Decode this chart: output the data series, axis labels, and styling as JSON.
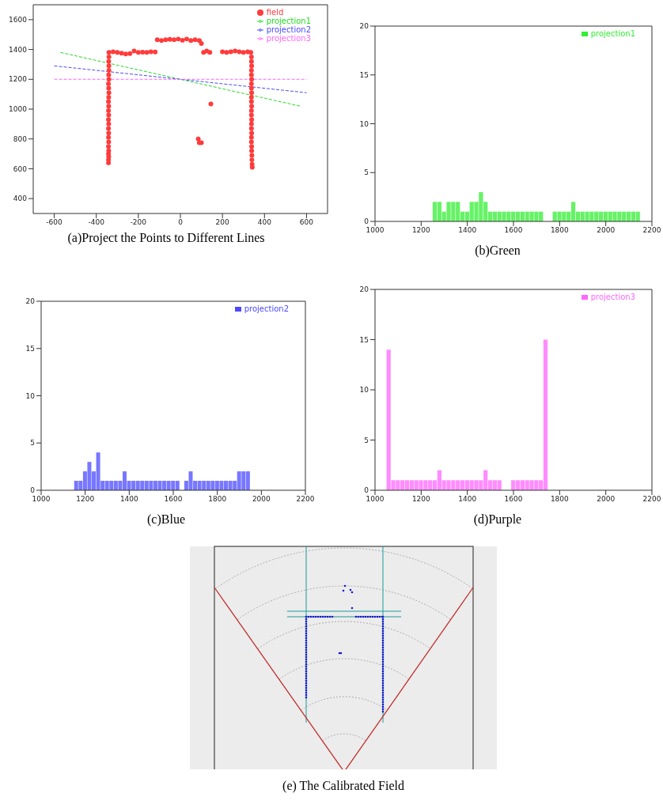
{
  "chart_data": [
    {
      "type": "line",
      "title": "(a)Project the Points to Different Lines",
      "xlim": [
        -700,
        700
      ],
      "ylim": [
        300,
        1700
      ],
      "xticks": [
        -600,
        -400,
        -200,
        0,
        200,
        400,
        600
      ],
      "yticks": [
        400,
        600,
        800,
        1000,
        1200,
        1400,
        1600
      ],
      "legend": "top right",
      "series": [
        {
          "name": "field",
          "type": "scatter",
          "marker": "circle",
          "color": "#ff3b3b",
          "x": [
            -342,
            -342,
            -341,
            -342,
            -341,
            -342,
            -341,
            -342,
            -341,
            -342,
            -341,
            -342,
            -341,
            -342,
            -341,
            -342,
            -341,
            -340,
            -341,
            -342,
            -340,
            -341,
            -340,
            -340,
            -341,
            -340,
            -340,
            -320,
            -300,
            -280,
            -260,
            -240,
            -220,
            -200,
            -180,
            -160,
            -140,
            -120,
            -110,
            -90,
            -70,
            -50,
            -30,
            -10,
            10,
            30,
            50,
            70,
            90,
            100,
            110,
            125,
            140,
            145,
            85,
            90,
            100,
            200,
            220,
            240,
            260,
            280,
            300,
            320,
            335,
            338,
            338,
            339,
            338,
            338,
            339,
            338,
            338,
            339,
            338,
            338,
            339,
            338,
            338,
            339,
            338,
            338,
            339,
            338,
            338,
            339,
            339,
            340,
            340,
            341,
            342
          ],
          "values": [
            640,
            660,
            680,
            700,
            720,
            750,
            780,
            810,
            840,
            870,
            900,
            930,
            960,
            990,
            1020,
            1050,
            1080,
            1110,
            1140,
            1170,
            1200,
            1230,
            1260,
            1290,
            1320,
            1350,
            1380,
            1385,
            1380,
            1375,
            1370,
            1372,
            1390,
            1380,
            1382,
            1380,
            1384,
            1383,
            1465,
            1460,
            1465,
            1468,
            1466,
            1470,
            1462,
            1470,
            1460,
            1465,
            1460,
            1440,
            1380,
            1390,
            1380,
            1035,
            800,
            775,
            775,
            1385,
            1380,
            1385,
            1390,
            1385,
            1380,
            1385,
            1380,
            1350,
            1320,
            1290,
            1260,
            1230,
            1200,
            1170,
            1140,
            1110,
            1080,
            1050,
            1020,
            990,
            960,
            930,
            900,
            870,
            840,
            810,
            780,
            750,
            720,
            690,
            660,
            630,
            610
          ]
        },
        {
          "name": "projection1",
          "type": "line",
          "line_style": "dashed",
          "color": "#22dd22",
          "x": [
            -570,
            570
          ],
          "values": [
            1380,
            1020
          ]
        },
        {
          "name": "projection2",
          "type": "line",
          "line_style": "dashed",
          "color": "#4a4aff",
          "x": [
            -600,
            600
          ],
          "values": [
            1290,
            1110
          ]
        },
        {
          "name": "projection3",
          "type": "line",
          "line_style": "dashed",
          "color": "#ff66ff",
          "x": [
            -600,
            600
          ],
          "values": [
            1200,
            1200
          ]
        }
      ]
    },
    {
      "type": "histogram",
      "title": "(b)Green",
      "xlim": [
        1000,
        2200
      ],
      "ylim": [
        0,
        20
      ],
      "xticks": [
        1000,
        1200,
        1400,
        1600,
        1800,
        2000,
        2200
      ],
      "yticks": [
        0,
        5,
        10,
        15,
        20
      ],
      "legend": "top right",
      "bins": [
        1250,
        1270,
        1290,
        1310,
        1330,
        1350,
        1370,
        1390,
        1410,
        1430,
        1450,
        1470,
        1490,
        1510,
        1530,
        1550,
        1570,
        1590,
        1610,
        1630,
        1650,
        1670,
        1690,
        1710,
        1730,
        1750,
        1770,
        1790,
        1810,
        1830,
        1850,
        1870,
        1890,
        1910,
        1930,
        1950,
        1970,
        1990,
        2010,
        2030,
        2050,
        2070,
        2090,
        2110,
        2130,
        2150
      ],
      "series": [
        {
          "name": "projection1",
          "color": "#33ee33",
          "values": [
            2,
            2,
            1,
            2,
            2,
            2,
            1,
            1,
            2,
            2,
            3,
            2,
            1,
            1,
            1,
            1,
            1,
            1,
            1,
            1,
            1,
            1,
            1,
            1,
            0,
            0,
            1,
            1,
            1,
            1,
            2,
            1,
            1,
            1,
            1,
            1,
            1,
            1,
            1,
            1,
            1,
            1,
            1,
            1,
            1
          ]
        }
      ]
    },
    {
      "type": "histogram",
      "title": "(c)Blue",
      "xlim": [
        1000,
        2200
      ],
      "ylim": [
        0,
        20
      ],
      "xticks": [
        1000,
        1200,
        1400,
        1600,
        1800,
        2000,
        2200
      ],
      "yticks": [
        0,
        5,
        10,
        15,
        20
      ],
      "legend": "top right",
      "bins": [
        1150,
        1170,
        1190,
        1210,
        1230,
        1250,
        1270,
        1290,
        1310,
        1330,
        1350,
        1370,
        1390,
        1410,
        1430,
        1450,
        1470,
        1490,
        1510,
        1530,
        1550,
        1570,
        1590,
        1610,
        1630,
        1650,
        1670,
        1690,
        1710,
        1730,
        1750,
        1770,
        1790,
        1810,
        1830,
        1850,
        1870,
        1890,
        1910,
        1930,
        1950
      ],
      "series": [
        {
          "name": "projection2",
          "color": "#4a4aff",
          "values": [
            1,
            1,
            2,
            3,
            2,
            4,
            1,
            1,
            1,
            1,
            1,
            2,
            1,
            1,
            1,
            1,
            1,
            1,
            1,
            1,
            1,
            1,
            1,
            1,
            0,
            1,
            2,
            1,
            1,
            1,
            1,
            1,
            1,
            1,
            1,
            1,
            1,
            2,
            2,
            2
          ]
        }
      ]
    },
    {
      "type": "histogram",
      "title": "(d)Purple",
      "xlim": [
        1000,
        2200
      ],
      "ylim": [
        0,
        20
      ],
      "xticks": [
        1000,
        1200,
        1400,
        1600,
        1800,
        2000,
        2200
      ],
      "yticks": [
        0,
        5,
        10,
        15,
        20
      ],
      "legend": "top right",
      "bins": [
        1050,
        1070,
        1090,
        1110,
        1130,
        1150,
        1170,
        1190,
        1210,
        1230,
        1250,
        1270,
        1290,
        1310,
        1330,
        1350,
        1370,
        1390,
        1410,
        1430,
        1450,
        1470,
        1490,
        1510,
        1530,
        1550,
        1570,
        1590,
        1610,
        1630,
        1650,
        1670,
        1690,
        1710,
        1730,
        1750
      ],
      "series": [
        {
          "name": "projection3",
          "color": "#ff66ff",
          "values": [
            14,
            1,
            1,
            1,
            1,
            1,
            1,
            1,
            1,
            1,
            1,
            2,
            1,
            1,
            1,
            1,
            1,
            1,
            1,
            1,
            1,
            2,
            1,
            1,
            1,
            0,
            0,
            1,
            1,
            1,
            1,
            1,
            1,
            1,
            15
          ]
        }
      ]
    },
    {
      "type": "other",
      "title": "(e) The Calibrated Field"
    }
  ]
}
